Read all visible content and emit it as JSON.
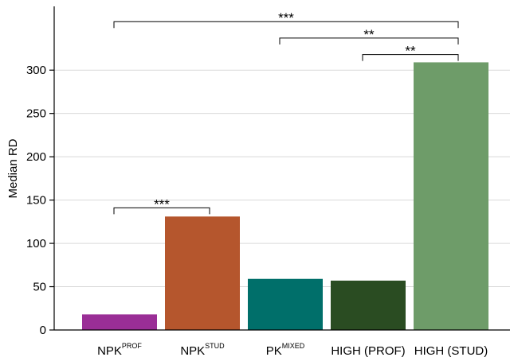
{
  "chart_data": {
    "type": "bar",
    "title": "",
    "xlabel": "",
    "ylabel": "Median RD",
    "ylim": [
      0,
      375
    ],
    "yticks": [
      0,
      50,
      100,
      150,
      200,
      250,
      300
    ],
    "grid": true,
    "categories": [
      {
        "base": "NPK",
        "sup": "PROF"
      },
      {
        "base": "NPK",
        "sup": "STUD"
      },
      {
        "base": "PK",
        "sup": "MIXED"
      },
      {
        "base": "HIGH (PROF)",
        "sup": ""
      },
      {
        "base": "HIGH (STUD)",
        "sup": ""
      }
    ],
    "values": [
      18,
      131,
      59,
      57,
      309
    ],
    "colors": [
      "#9a2e96",
      "#b5562d",
      "#006f6a",
      "#2a4c22",
      "#6e9c69"
    ],
    "significance": [
      {
        "from": 0,
        "to": 1,
        "label": "***",
        "y": 141
      },
      {
        "from": 3,
        "to": 4,
        "label": "**",
        "y": 318
      },
      {
        "from": 2,
        "to": 4,
        "label": "**",
        "y": 337
      },
      {
        "from": 0,
        "to": 4,
        "label": "***",
        "y": 356
      }
    ]
  }
}
